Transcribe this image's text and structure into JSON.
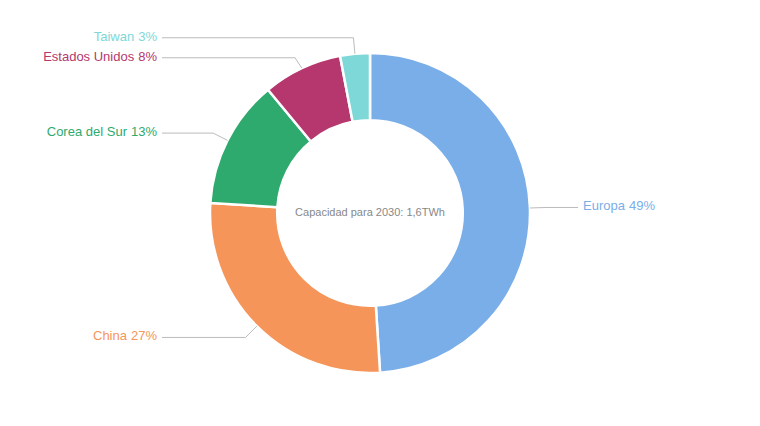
{
  "chart_data": {
    "type": "donut",
    "categories": [
      "Europa",
      "China",
      "Corea del Sur",
      "Estados Unidos",
      "Taiwan"
    ],
    "values": [
      49,
      27,
      13,
      8,
      3
    ],
    "value_labels": [
      "49%",
      "27%",
      "13%",
      "8%",
      "3%"
    ],
    "colors": [
      "#7aaee8",
      "#f5955a",
      "#2eaa6e",
      "#b5376e",
      "#7ed8d8"
    ],
    "data_labels": true,
    "annotations": [
      "Capacidad para 2030: 1,6TWh"
    ]
  }
}
